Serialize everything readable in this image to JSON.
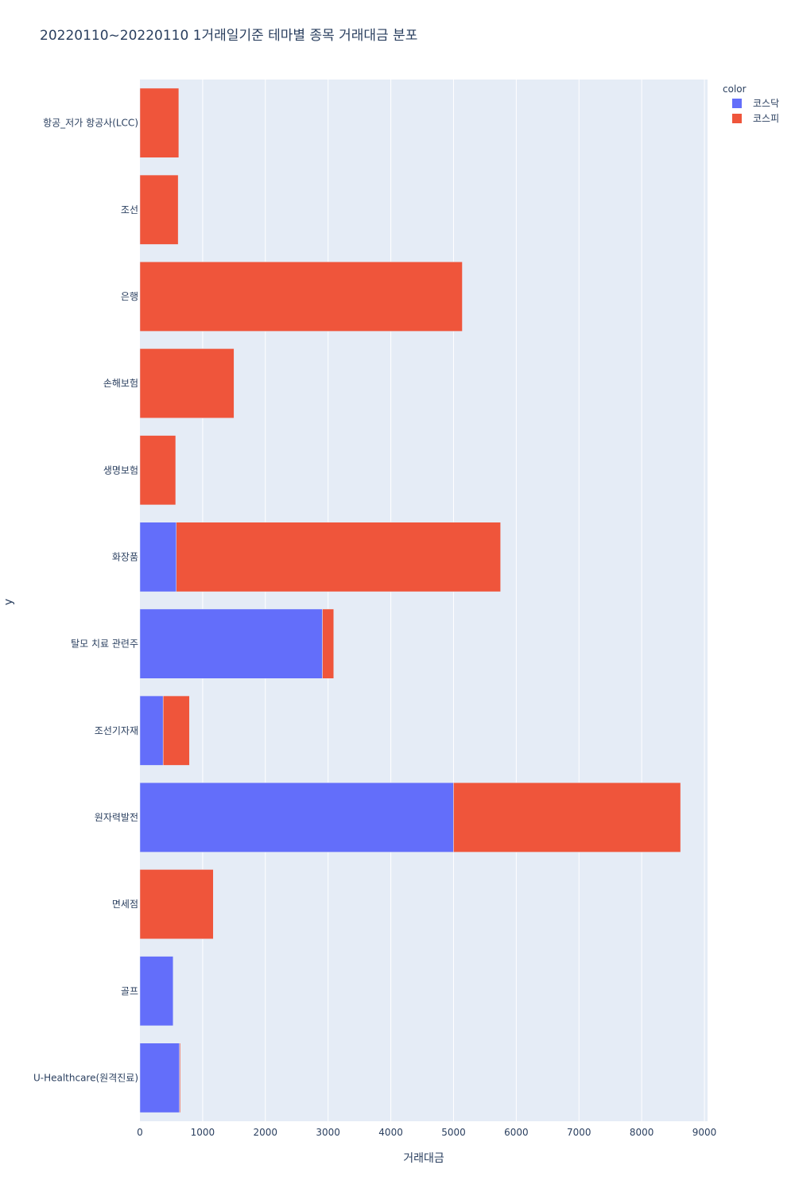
{
  "chart_data": {
    "type": "bar",
    "orientation": "horizontal",
    "barmode": "stack",
    "title": "20220110~20220110 1거래일기준 테마별 종목 거래대금 분포",
    "xlabel": "거래대금",
    "ylabel": "y",
    "xlim": [
      0,
      9050
    ],
    "xticks": [
      0,
      1000,
      2000,
      3000,
      4000,
      5000,
      6000,
      7000,
      8000,
      9000
    ],
    "grid": true,
    "legend": {
      "title": "color",
      "placement": "top-right"
    },
    "categories": [
      "항공_저가 항공사(LCC)",
      "조선",
      "은행",
      "손해보험",
      "생명보험",
      "화장품",
      "탈모 치료 관련주",
      "조선기자재",
      "원자력발전",
      "면세점",
      "골프",
      "U-Healthcare(원격진료)"
    ],
    "series": [
      {
        "name": "코스닥",
        "color": "#636efa",
        "values": [
          0,
          0,
          0,
          0,
          0,
          580,
          2910,
          370,
          5000,
          0,
          530,
          630
        ]
      },
      {
        "name": "코스피",
        "color": "#ef553b",
        "values": [
          620,
          610,
          5140,
          1500,
          570,
          5170,
          180,
          420,
          3620,
          1170,
          0,
          15
        ]
      }
    ],
    "colors": {
      "plot_background": "#e5ecf6",
      "grid": "#ffffff",
      "text": "#2a3f5f"
    }
  }
}
